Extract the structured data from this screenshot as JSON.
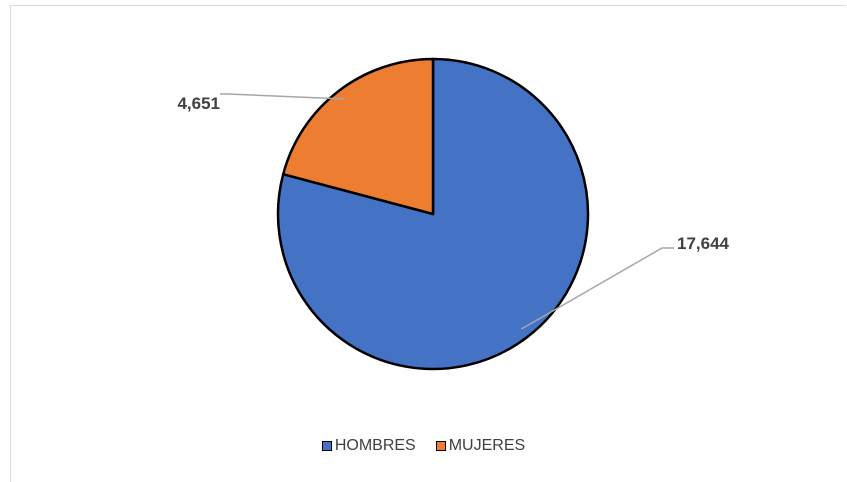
{
  "chart_data": {
    "type": "pie",
    "title": "",
    "categories": [
      "HOMBRES",
      "MUJERES"
    ],
    "values": [
      17644,
      4651
    ],
    "value_labels": [
      "17,644",
      "4,651"
    ],
    "colors": [
      "#4472c4",
      "#ed7d31"
    ],
    "legend_position": "bottom"
  }
}
